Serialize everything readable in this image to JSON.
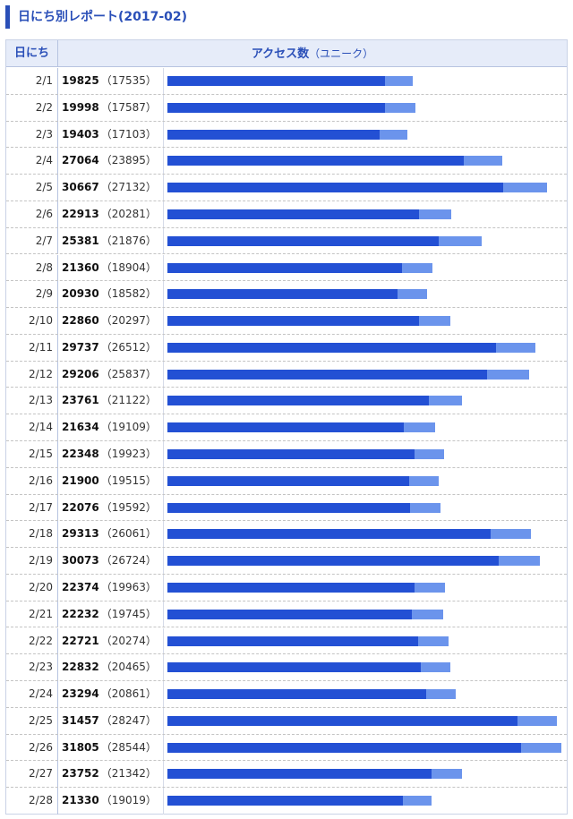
{
  "title": "日にち別レポート(2017-02)",
  "header": {
    "date_label": "日にち",
    "access_label": "アクセス数",
    "unique_label": "（ユニーク）"
  },
  "colors": {
    "accent": "#2a4fb8",
    "bar_unique": "#2350d4",
    "bar_total": "#6b94ec"
  },
  "chart_data": {
    "type": "bar",
    "orientation": "horizontal",
    "title": "日にち別レポート(2017-02)",
    "categories": [
      "2/1",
      "2/2",
      "2/3",
      "2/4",
      "2/5",
      "2/6",
      "2/7",
      "2/8",
      "2/9",
      "2/10",
      "2/11",
      "2/12",
      "2/13",
      "2/14",
      "2/15",
      "2/16",
      "2/17",
      "2/18",
      "2/19",
      "2/20",
      "2/21",
      "2/22",
      "2/23",
      "2/24",
      "2/25",
      "2/26",
      "2/27",
      "2/28"
    ],
    "series": [
      {
        "name": "アクセス数",
        "values": [
          19825,
          19998,
          19403,
          27064,
          30667,
          22913,
          25381,
          21360,
          20930,
          22860,
          29737,
          29206,
          23761,
          21634,
          22348,
          21900,
          22076,
          29313,
          30073,
          22374,
          22232,
          22721,
          22832,
          23294,
          31457,
          31805,
          23752,
          21330
        ]
      },
      {
        "name": "ユニーク",
        "values": [
          17535,
          17587,
          17103,
          23895,
          27132,
          20281,
          21876,
          18904,
          18582,
          20297,
          26512,
          25837,
          21122,
          19109,
          19923,
          19515,
          19592,
          26061,
          26724,
          19963,
          19745,
          20274,
          20465,
          20861,
          28247,
          28544,
          21342,
          19019
        ]
      }
    ],
    "xlim": [
      0,
      31805
    ]
  }
}
